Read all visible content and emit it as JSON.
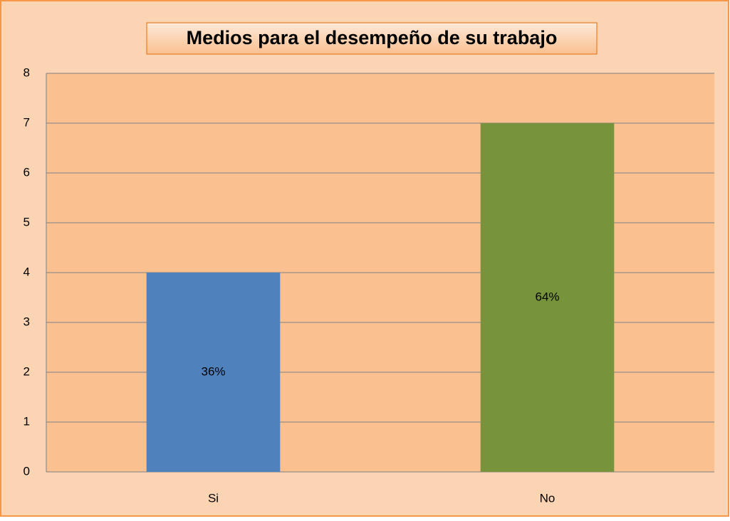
{
  "chart_data": {
    "type": "bar",
    "title": "Medios para el desempeño de su trabajo",
    "categories": [
      "Si",
      "No"
    ],
    "values": [
      4,
      7
    ],
    "colors": [
      "#4f81bd",
      "#77933c"
    ],
    "annotations": [
      "36%",
      "64%"
    ],
    "ylim": [
      0,
      8
    ],
    "yticks": [
      0,
      1,
      2,
      3,
      4,
      5,
      6,
      7,
      8
    ],
    "grid": true
  }
}
